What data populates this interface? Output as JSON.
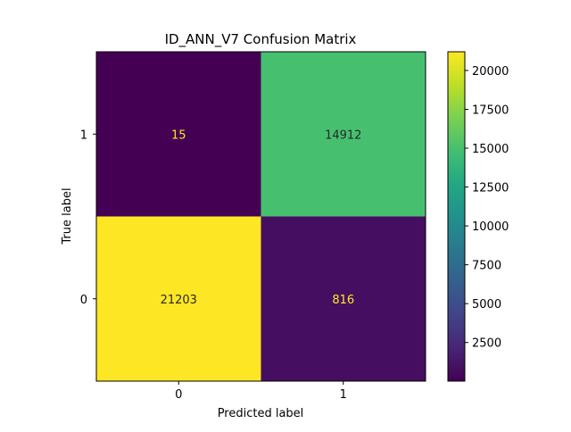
{
  "chart_data": {
    "type": "heatmap",
    "title": "ID_ANN_V7 Confusion Matrix",
    "xlabel": "Predicted label",
    "ylabel": "True label",
    "x_categories": [
      "0",
      "1"
    ],
    "y_categories_top_to_bottom": [
      "1",
      "0"
    ],
    "matrix_rows_top_to_bottom": [
      [
        15,
        14912
      ],
      [
        21203,
        816
      ]
    ],
    "colormap": "viridis",
    "colorbar": {
      "min": 15,
      "max": 21203,
      "ticks": [
        2500,
        5000,
        7500,
        10000,
        12500,
        15000,
        17500,
        20000
      ],
      "tick_labels": [
        "2500",
        "5000",
        "7500",
        "10000",
        "12500",
        "15000",
        "17500",
        "20000"
      ]
    },
    "grid": false,
    "legend": "colorbar-right"
  }
}
